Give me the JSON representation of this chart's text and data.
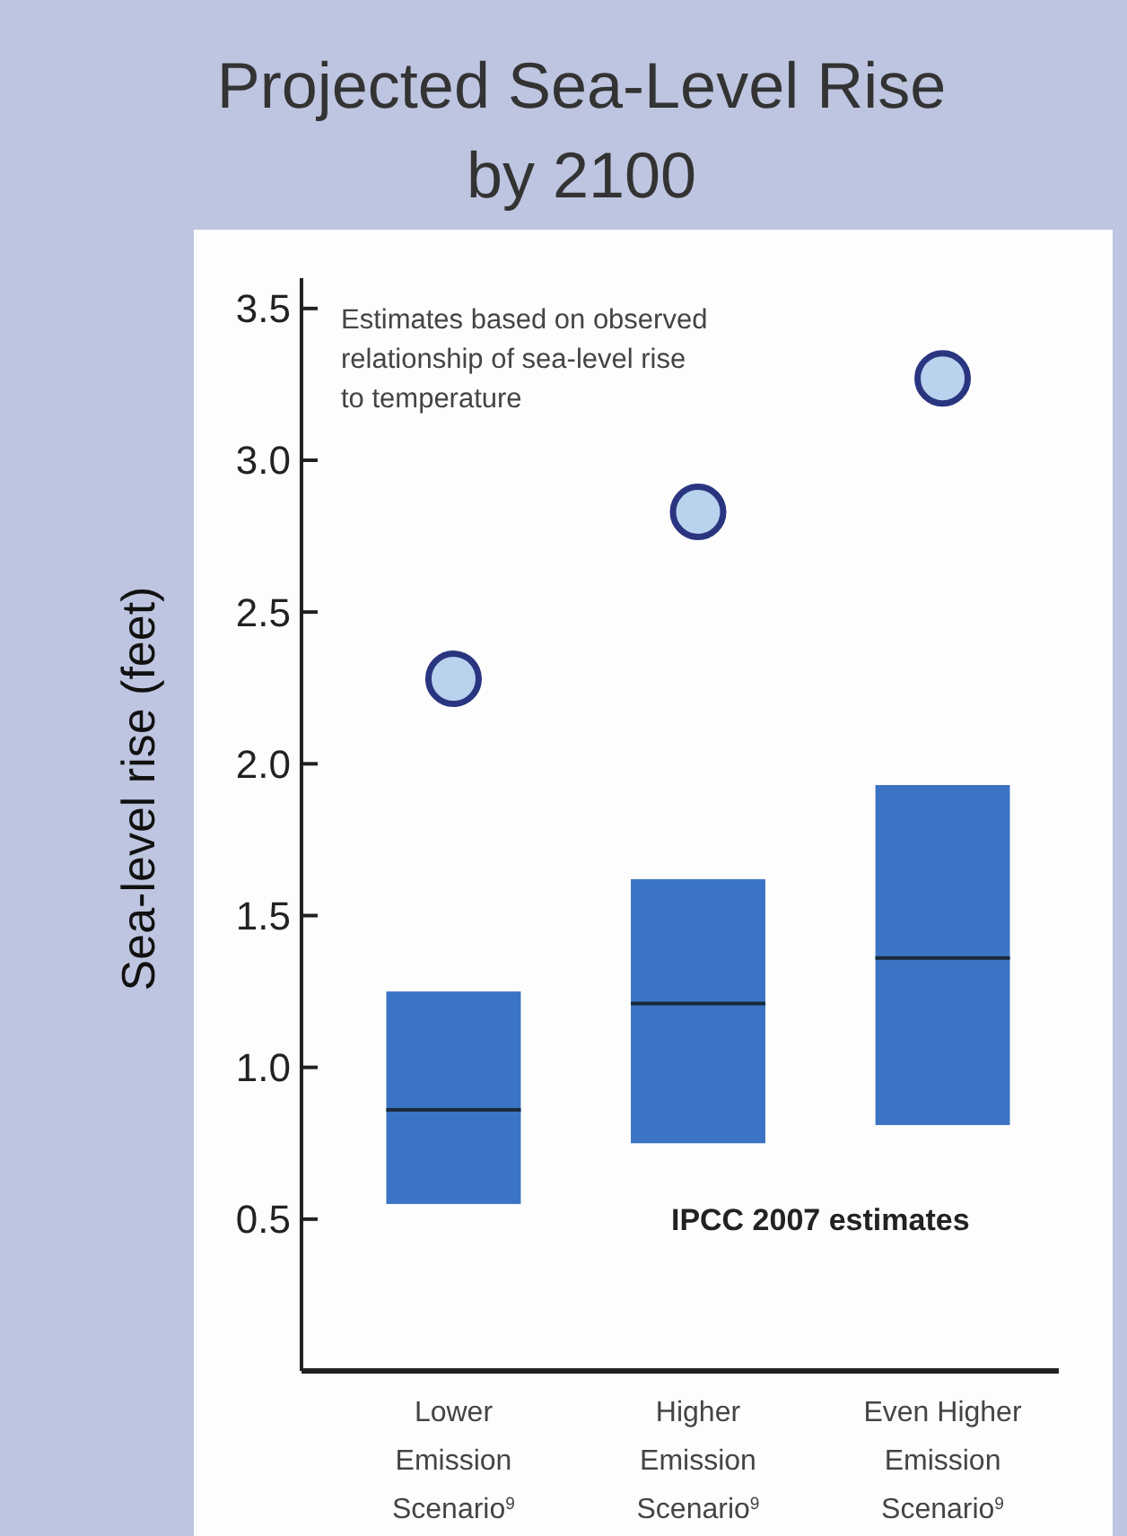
{
  "chart_data": {
    "type": "box",
    "title": "Projected Sea-Level Rise\nby 2100",
    "ylabel": "Sea-level rise (feet)",
    "categories": [
      "Lower\nEmission\nScenario$^{9}$",
      "Higher\nEmission\nScenario$^{9}$",
      "Even Higher\nEmission\nScenario$^{9}$"
    ],
    "ylim": [
      0,
      3.6
    ],
    "yticks": [
      {
        "value": 0.5,
        "label": "0.5"
      },
      {
        "value": 1,
        "label": "1.0"
      },
      {
        "value": 1.5,
        "label": "1.5"
      },
      {
        "value": 2,
        "label": "2.0"
      },
      {
        "value": 2.5,
        "label": "2.5"
      },
      {
        "value": 3,
        "label": "3.0"
      },
      {
        "value": 3.5,
        "label": "3.5"
      }
    ],
    "series": [
      {
        "color": "#3b74c4",
        "boxes": [
          {
            "low": 0.55,
            "q1": 0.55,
            "median": 0.86,
            "q3": 1.25,
            "high": 1.25
          },
          {
            "low": 0.75,
            "q1": 0.75,
            "median": 1.21,
            "q3": 1.62,
            "high": 1.62
          },
          {
            "low": 0.81,
            "q1": 0.81,
            "median": 1.36,
            "q3": 1.93,
            "high": 1.93
          }
        ]
      },
      {
        "type": "scatter",
        "color": "#b9d2ee",
        "marker": "circle",
        "x": [
          "Lower\nEmission\nScenario$^{9}$",
          "Higher\nEmission\nScenario$^{9}$",
          "Even Higher\nEmission\nScenario$^{9}$"
        ],
        "values": [
          2.28,
          2.83,
          3.27
        ]
      }
    ],
    "annotations": [
      "Estimates based on observed\nrelationship of sea-level rise\nto temperature",
      "IPCC 2007 estimates"
    ]
  }
}
